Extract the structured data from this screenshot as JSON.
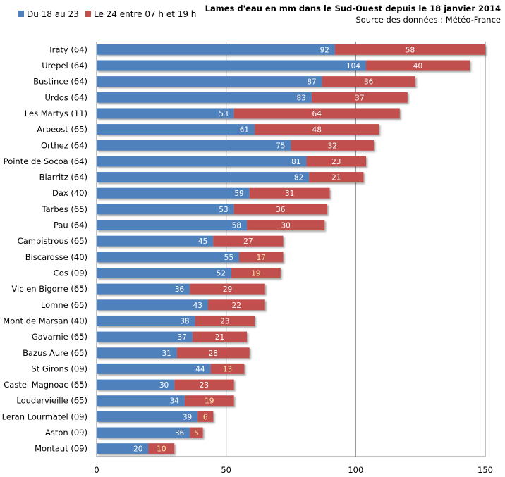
{
  "chart_data": {
    "type": "bar",
    "orientation": "horizontal",
    "stacked": true,
    "title": "Lames d'eau en mm dans  le Sud-Ouest depuis le 18 janvier  2014",
    "subtitle": "Source des données : Météo-France",
    "xlabel": "",
    "ylabel": "",
    "xlim": [
      0,
      150
    ],
    "xticks": [
      0,
      50,
      100,
      150
    ],
    "grid": true,
    "legend_position": "top-left",
    "categories": [
      "Iraty (64)",
      "Urepel (64)",
      "Bustince (64)",
      "Urdos (64)",
      "Les Martys (11)",
      "Arbeost (65)",
      "Orthez (64)",
      "Pointe de Socoa (64)",
      "Biarritz (64)",
      "Dax (40)",
      "Tarbes (65)",
      "Pau (64)",
      "Campistrous (65)",
      "Biscarosse (40)",
      "Cos (09)",
      "Vic en Bigorre (65)",
      "Lomne (65)",
      "Mont de Marsan (40)",
      "Gavarnie (65)",
      "Bazus Aure (65)",
      "St Girons (09)",
      "Castel Magnoac (65)",
      "Loudervieille (65)",
      "Leran Lourmatel (09)",
      "Aston (09)",
      "Montaut (09)"
    ],
    "series": [
      {
        "name": "Du 18 au 23",
        "color": "#4f81bd",
        "values": [
          92,
          104,
          87,
          83,
          53,
          61,
          75,
          81,
          82,
          59,
          53,
          58,
          45,
          55,
          52,
          36,
          43,
          38,
          37,
          31,
          44,
          30,
          34,
          39,
          36,
          20
        ]
      },
      {
        "name": "Le 24 entre 07 h et 19 h",
        "color": "#c0504d",
        "values": [
          58,
          40,
          36,
          37,
          64,
          48,
          32,
          23,
          21,
          31,
          36,
          30,
          27,
          17,
          19,
          29,
          22,
          23,
          21,
          28,
          13,
          23,
          19,
          6,
          5,
          10
        ]
      }
    ]
  }
}
